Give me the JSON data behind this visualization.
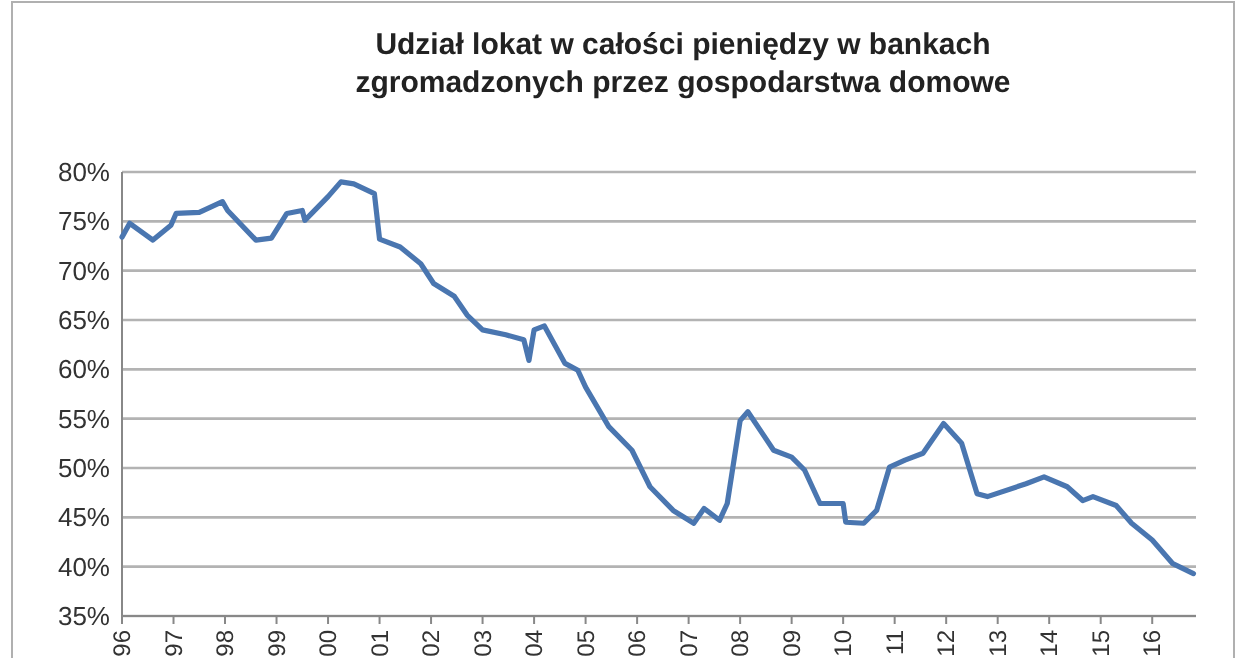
{
  "chart_data": {
    "type": "line",
    "title": "Udział lokat w całości pieniędzy w bankach\nzgromadzonych przez gospodarstwa domowe",
    "x": [
      1996.0,
      1996.15,
      1996.6,
      1996.95,
      1997.05,
      1997.5,
      1997.95,
      1998.05,
      1998.6,
      1998.9,
      1999.2,
      1999.5,
      1999.55,
      2000.0,
      2000.25,
      2000.5,
      2000.9,
      2001.0,
      2001.4,
      2001.8,
      2002.05,
      2002.45,
      2002.7,
      2003.0,
      2003.45,
      2003.8,
      2003.9,
      2004.0,
      2004.2,
      2004.6,
      2004.85,
      2005.0,
      2005.45,
      2005.9,
      2006.25,
      2006.7,
      2007.1,
      2007.3,
      2007.6,
      2007.75,
      2008.0,
      2008.15,
      2008.65,
      2009.0,
      2009.25,
      2009.55,
      2010.0,
      2010.05,
      2010.4,
      2010.65,
      2010.9,
      2011.2,
      2011.55,
      2011.95,
      2012.3,
      2012.6,
      2012.8,
      2013.55,
      2013.9,
      2014.35,
      2014.65,
      2014.85,
      2015.3,
      2015.6,
      2016.0,
      2016.4,
      2016.8
    ],
    "series": [
      {
        "color": "#4a76b0",
        "values": [
          73.4,
          74.8,
          73.1,
          74.6,
          75.8,
          75.9,
          77.0,
          76.1,
          73.1,
          73.3,
          75.8,
          76.1,
          75.1,
          77.5,
          79.0,
          78.8,
          77.8,
          73.2,
          72.4,
          70.7,
          68.7,
          67.4,
          65.5,
          64.0,
          63.5,
          63.0,
          60.9,
          64.0,
          64.4,
          60.6,
          59.9,
          58.2,
          54.2,
          51.8,
          48.1,
          45.7,
          44.4,
          45.9,
          44.7,
          46.4,
          54.8,
          55.7,
          51.8,
          51.1,
          49.8,
          46.4,
          46.4,
          44.5,
          44.4,
          45.7,
          50.1,
          50.8,
          51.5,
          54.5,
          52.5,
          47.4,
          47.1,
          48.4,
          49.1,
          48.1,
          46.7,
          47.1,
          46.2,
          44.4,
          42.7,
          40.3,
          39.3
        ]
      }
    ],
    "xlim": [
      1996,
      2016.85
    ],
    "xticks": [
      {
        "value": 1996,
        "label": "96"
      },
      {
        "value": 1997,
        "label": "97"
      },
      {
        "value": 1998,
        "label": "98"
      },
      {
        "value": 1999,
        "label": "99"
      },
      {
        "value": 2000,
        "label": "00"
      },
      {
        "value": 2001,
        "label": "01"
      },
      {
        "value": 2002,
        "label": "02"
      },
      {
        "value": 2003,
        "label": "03"
      },
      {
        "value": 2004,
        "label": "04"
      },
      {
        "value": 2005,
        "label": "05"
      },
      {
        "value": 2006,
        "label": "06"
      },
      {
        "value": 2007,
        "label": "07"
      },
      {
        "value": 2008,
        "label": "08"
      },
      {
        "value": 2009,
        "label": "09"
      },
      {
        "value": 2010,
        "label": "10"
      },
      {
        "value": 2011,
        "label": "11"
      },
      {
        "value": 2012,
        "label": "12"
      },
      {
        "value": 2013,
        "label": "13"
      },
      {
        "value": 2014,
        "label": "14"
      },
      {
        "value": 2015,
        "label": "15"
      },
      {
        "value": 2016,
        "label": "16"
      }
    ],
    "ylim": [
      35,
      80
    ],
    "yticks": [
      {
        "value": 35,
        "label": "35%"
      },
      {
        "value": 40,
        "label": "40%"
      },
      {
        "value": 45,
        "label": "45%"
      },
      {
        "value": 50,
        "label": "50%"
      },
      {
        "value": 55,
        "label": "55%"
      },
      {
        "value": 60,
        "label": "60%"
      },
      {
        "value": 65,
        "label": "65%"
      },
      {
        "value": 70,
        "label": "70%"
      },
      {
        "value": 75,
        "label": "75%"
      },
      {
        "value": 80,
        "label": "80%"
      }
    ],
    "grid": "y"
  }
}
